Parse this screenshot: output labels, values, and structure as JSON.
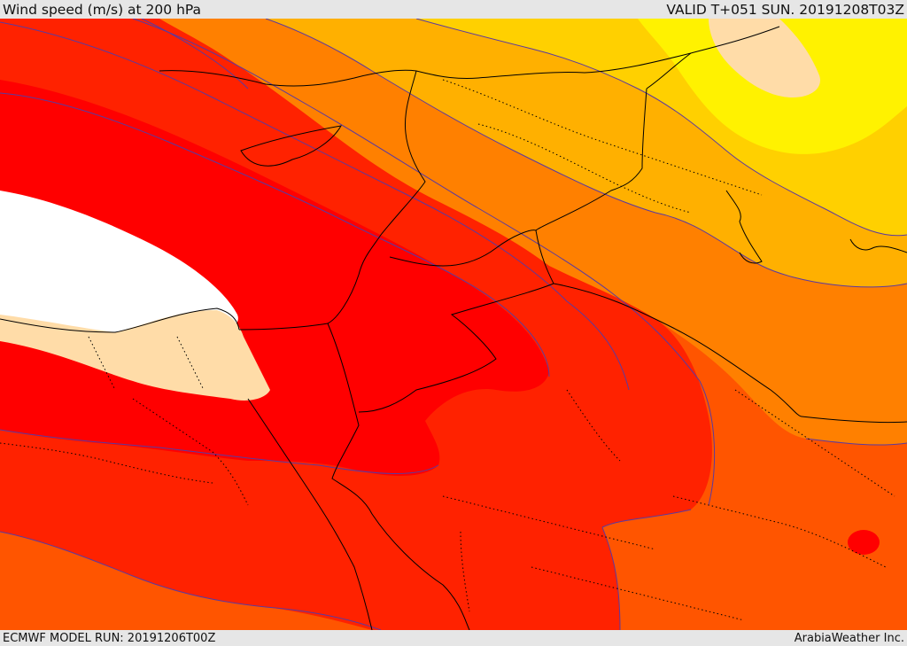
{
  "header": {
    "title": "Wind speed (m/s) at 200 hPa",
    "valid": "VALID T+051 SUN. 20191208T03Z"
  },
  "footer": {
    "model_run": "ECMWF MODEL RUN: 20191206T00Z",
    "credit": "ArabiaWeather Inc."
  },
  "map": {
    "fill_colors": {
      "calm": "#ffdca8",
      "very_light": "#fff200",
      "light": "#ffd000",
      "moderate": "#ffb000",
      "strong": "#ff8000",
      "very_strong": "#ff5500",
      "intense": "#ff2200",
      "jet_core": "#ff0000",
      "max": "#ffffff"
    },
    "contour_color": "#5a3aa0",
    "boundary_color": "#000000"
  }
}
